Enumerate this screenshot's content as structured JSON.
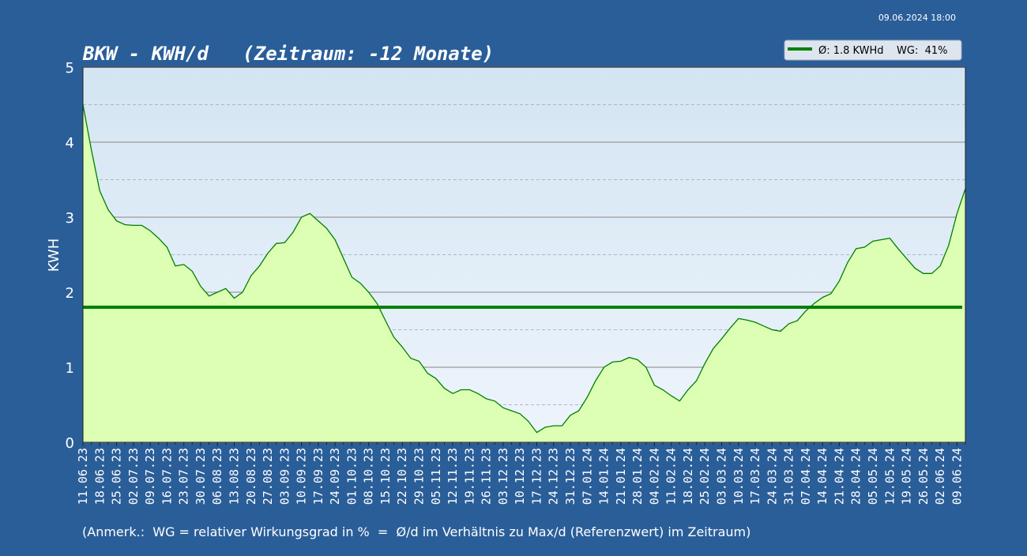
{
  "chart_data": {
    "type": "area",
    "title": "BKW - KWH/d   (Zeitraum: -12 Monate)",
    "timestamp": "09.06.2024 18:00",
    "ylabel": "KWH",
    "note": "(Anmerk.:  WG = relativer Wirkungsgrad in %  =  Ø/d im Verhältnis zu Max/d (Referenzwert) im Zeitraum)",
    "categories": [
      "11.06.23",
      null,
      "18.06.23",
      null,
      "25.06.23",
      null,
      "02.07.23",
      null,
      "09.07.23",
      null,
      "16.07.23",
      null,
      "23.07.23",
      null,
      "30.07.23",
      null,
      "06.08.23",
      null,
      "13.08.23",
      null,
      "20.08.23",
      null,
      "27.08.23",
      null,
      "03.09.23",
      null,
      "10.09.23",
      null,
      "17.09.23",
      null,
      "24.09.23",
      null,
      "01.10.23",
      null,
      "08.10.23",
      null,
      "15.10.23",
      null,
      "22.10.23",
      null,
      "29.10.23",
      null,
      "05.11.23",
      null,
      "12.11.23",
      null,
      "19.11.23",
      null,
      "26.11.23",
      null,
      "03.12.23",
      null,
      "10.12.23",
      null,
      "17.12.23",
      null,
      "24.12.23",
      null,
      "31.12.23",
      null,
      "07.01.24",
      null,
      "14.01.24",
      null,
      "21.01.24",
      null,
      "28.01.24",
      null,
      "04.02.24",
      null,
      "11.02.24",
      null,
      "18.02.24",
      null,
      "25.02.24",
      null,
      "03.03.24",
      null,
      "10.03.24",
      null,
      "17.03.24",
      null,
      "24.03.24",
      null,
      "31.03.24",
      null,
      "07.04.24",
      null,
      "14.04.24",
      null,
      "21.04.24",
      null,
      "28.04.24",
      null,
      "05.05.24",
      null,
      "12.05.24",
      null,
      "19.05.24",
      null,
      "26.05.24",
      null,
      "02.06.24",
      null,
      "09.06.24",
      null
    ],
    "values": [
      4.5,
      3.9,
      3.35,
      3.1,
      2.95,
      2.9,
      2.89,
      2.89,
      2.82,
      2.72,
      2.6,
      2.35,
      2.37,
      2.28,
      2.08,
      1.95,
      2.0,
      2.05,
      1.92,
      2.0,
      2.22,
      2.35,
      2.52,
      2.65,
      2.66,
      2.8,
      3.0,
      3.05,
      2.95,
      2.85,
      2.7,
      2.45,
      2.2,
      2.12,
      2.0,
      1.85,
      1.62,
      1.4,
      1.27,
      1.12,
      1.08,
      0.92,
      0.85,
      0.72,
      0.65,
      0.7,
      0.7,
      0.65,
      0.58,
      0.55,
      0.46,
      0.42,
      0.38,
      0.28,
      0.13,
      0.2,
      0.22,
      0.22,
      0.36,
      0.42,
      0.6,
      0.82,
      1.0,
      1.07,
      1.08,
      1.13,
      1.1,
      1.0,
      0.76,
      0.7,
      0.62,
      0.55,
      0.7,
      0.82,
      1.05,
      1.25,
      1.38,
      1.52,
      1.65,
      1.63,
      1.6,
      1.55,
      1.5,
      1.48,
      1.58,
      1.62,
      1.75,
      1.85,
      1.93,
      1.98,
      2.15,
      2.4,
      2.58,
      2.6,
      2.68,
      2.7,
      2.72,
      2.58,
      2.45,
      2.32,
      2.25,
      2.25,
      2.35,
      2.62,
      3.05,
      3.38
    ],
    "color": "#008000",
    "fill": "#dcffb4",
    "average": {
      "name": "Ø: 1.8 KWHd    WG:  41%",
      "value": 1.8,
      "color": "#008000"
    },
    "ylim": [
      0,
      5
    ],
    "yticks": [
      0,
      1,
      2,
      3,
      4,
      5
    ],
    "minor_yticks": [
      0.5,
      1.5,
      2.5,
      3.5,
      4.5
    ],
    "grid": true
  }
}
